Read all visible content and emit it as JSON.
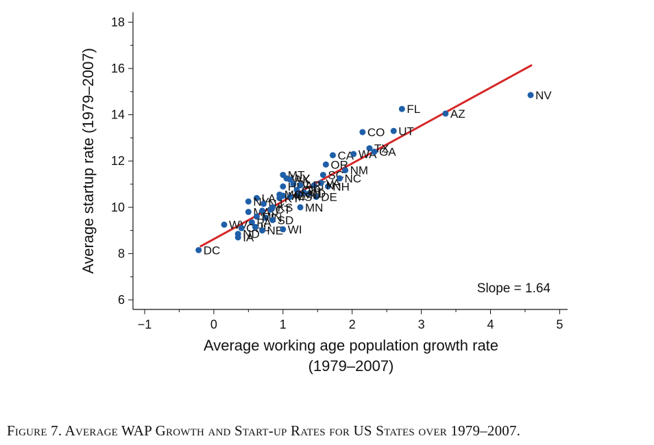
{
  "caption": "Figure 7. Average WAP Growth and Start-up Rates for US States over 1979–2007.",
  "chart_data": {
    "type": "scatter",
    "xlabel": "Average working age population growth rate",
    "xlabel_line2": "(1979–2007)",
    "ylabel": "Average startup rate (1979–2007)",
    "xlim": [
      -1,
      5
    ],
    "ylim": [
      6,
      18
    ],
    "xticks": [
      -1,
      0,
      1,
      2,
      3,
      4,
      5
    ],
    "yticks": [
      6,
      8,
      10,
      12,
      14,
      16,
      18
    ],
    "annotation": "Slope = 1.64",
    "fit_line": {
      "x": [
        -0.2,
        4.6
      ],
      "y": [
        8.3,
        16.15
      ]
    },
    "colors": {
      "points": "#1f5fa8",
      "fit_line": "#d62728"
    },
    "points": [
      {
        "label": "DC",
        "x": -0.22,
        "y": 8.15
      },
      {
        "label": "NV",
        "x": 4.58,
        "y": 14.85
      },
      {
        "label": "FL",
        "x": 2.72,
        "y": 14.25
      },
      {
        "label": "AZ",
        "x": 3.35,
        "y": 14.05
      },
      {
        "label": "CO",
        "x": 2.15,
        "y": 13.25
      },
      {
        "label": "UT",
        "x": 2.6,
        "y": 13.3
      },
      {
        "label": "TX",
        "x": 2.25,
        "y": 12.55
      },
      {
        "label": "CA",
        "x": 1.72,
        "y": 12.25
      },
      {
        "label": "WA",
        "x": 2.02,
        "y": 12.3
      },
      {
        "label": "GA",
        "x": 2.32,
        "y": 12.4
      },
      {
        "label": "OR",
        "x": 1.62,
        "y": 11.85
      },
      {
        "label": "NM",
        "x": 1.9,
        "y": 11.6
      },
      {
        "label": "SC",
        "x": 1.58,
        "y": 11.4
      },
      {
        "label": "NC",
        "x": 1.82,
        "y": 11.25
      },
      {
        "label": "NH",
        "x": 1.65,
        "y": 10.9
      },
      {
        "label": "TN",
        "x": 1.45,
        "y": 10.95
      },
      {
        "label": "VA",
        "x": 1.55,
        "y": 11.05
      },
      {
        "label": "MT",
        "x": 1.0,
        "y": 11.4
      },
      {
        "label": "WY",
        "x": 1.05,
        "y": 11.25
      },
      {
        "label": "AK",
        "x": 1.1,
        "y": 11.2
      },
      {
        "label": "AL",
        "x": 1.15,
        "y": 11.0
      },
      {
        "label": "AR",
        "x": 1.25,
        "y": 10.95
      },
      {
        "label": "HI",
        "x": 1.0,
        "y": 10.9
      },
      {
        "label": "DE",
        "x": 1.48,
        "y": 10.45
      },
      {
        "label": "ID",
        "x": 1.38,
        "y": 10.6
      },
      {
        "label": "MD",
        "x": 1.22,
        "y": 10.55
      },
      {
        "label": "VT",
        "x": 1.3,
        "y": 10.65
      },
      {
        "label": "OK",
        "x": 1.2,
        "y": 10.75
      },
      {
        "label": "MO",
        "x": 0.95,
        "y": 10.55
      },
      {
        "label": "ME",
        "x": 1.0,
        "y": 10.5
      },
      {
        "label": "MS",
        "x": 1.1,
        "y": 10.45
      },
      {
        "label": "KY",
        "x": 0.95,
        "y": 10.4
      },
      {
        "label": "MN",
        "x": 1.25,
        "y": 10.0
      },
      {
        "label": "LA",
        "x": 0.62,
        "y": 10.4
      },
      {
        "label": "NY",
        "x": 0.5,
        "y": 10.25
      },
      {
        "label": "NJ",
        "x": 0.72,
        "y": 10.15
      },
      {
        "label": "MA",
        "x": 0.5,
        "y": 9.8
      },
      {
        "label": "RI",
        "x": 0.7,
        "y": 9.85
      },
      {
        "label": "CT",
        "x": 0.82,
        "y": 9.9
      },
      {
        "label": "KS",
        "x": 0.85,
        "y": 10.0
      },
      {
        "label": "IN",
        "x": 0.75,
        "y": 9.55
      },
      {
        "label": "MI",
        "x": 0.62,
        "y": 9.6
      },
      {
        "label": "SD",
        "x": 0.85,
        "y": 9.45
      },
      {
        "label": "WV",
        "x": 0.15,
        "y": 9.25
      },
      {
        "label": "PA",
        "x": 0.55,
        "y": 9.35
      },
      {
        "label": "OH",
        "x": 0.4,
        "y": 9.1
      },
      {
        "label": "ND",
        "x": 0.35,
        "y": 8.85
      },
      {
        "label": "IL",
        "x": 0.6,
        "y": 9.15
      },
      {
        "label": "NE",
        "x": 0.7,
        "y": 9.0
      },
      {
        "label": "WI",
        "x": 1.0,
        "y": 9.05
      },
      {
        "label": "IA",
        "x": 0.35,
        "y": 8.7
      }
    ]
  }
}
